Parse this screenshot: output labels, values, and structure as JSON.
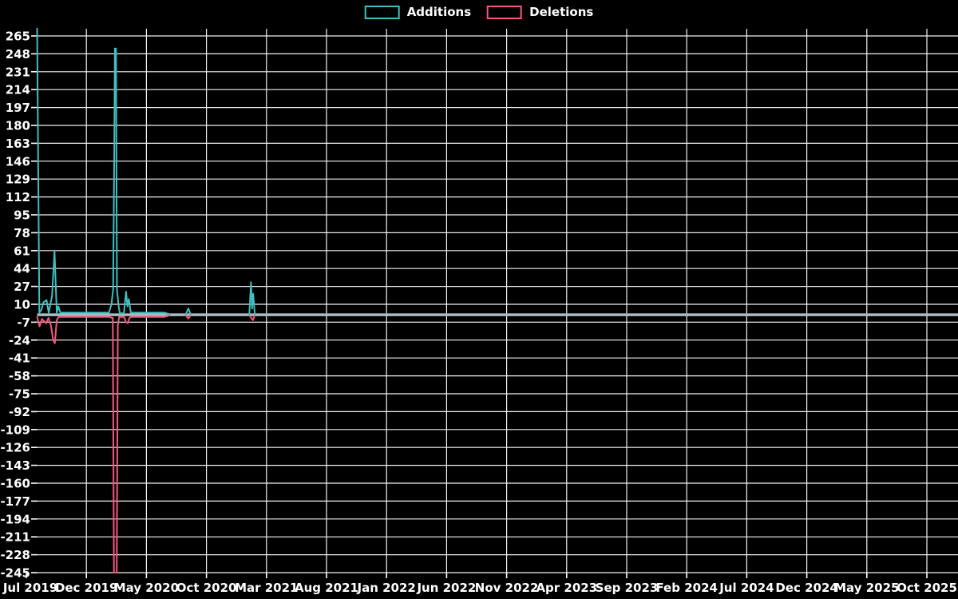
{
  "legend": {
    "position": "top-center",
    "items": [
      {
        "label": "Additions",
        "color": "#3fbfbf"
      },
      {
        "label": "Deletions",
        "color": "#f4587e"
      }
    ]
  },
  "chart_data": {
    "type": "line",
    "title": "",
    "xlabel": "",
    "ylabel": "",
    "background": "#000000",
    "grid": {
      "show": true,
      "color": "#f2f2f2"
    },
    "zero_line": {
      "value": 0,
      "color": "#a9bcc4"
    },
    "x_axis": {
      "labels": [
        "Jul 2019",
        "Dec 2019",
        "May 2020",
        "Oct 2020",
        "Mar 2021",
        "Aug 2021",
        "Jan 2022",
        "Jun 2022",
        "Nov 2022",
        "Apr 2023",
        "Sep 2023",
        "Feb 2024",
        "Jul 2024",
        "Dec 2024",
        "May 2025",
        "Oct 2025"
      ],
      "label_interval_months": 5,
      "data_resolution": "weekly",
      "weeks_total": 333
    },
    "y_axis": {
      "min": -245,
      "max": 265,
      "tick_step": 17,
      "ticks": [
        265,
        248,
        231,
        214,
        197,
        180,
        163,
        146,
        129,
        112,
        95,
        78,
        61,
        44,
        27,
        10,
        -7,
        -24,
        -41,
        -58,
        -75,
        -92,
        -109,
        -126,
        -143,
        -160,
        -177,
        -194,
        -211,
        -228,
        -245
      ]
    },
    "series": [
      {
        "name": "Additions",
        "color": "#3fbfbf",
        "segments": [
          [
            [
              0,
              272
            ],
            [
              0.8,
              2
            ],
            [
              1.6,
              5
            ],
            [
              2.3,
              12
            ],
            [
              3.4,
              14
            ],
            [
              4.2,
              2
            ],
            [
              5.4,
              18
            ],
            [
              6.3,
              61
            ],
            [
              7.1,
              2
            ],
            [
              7.7,
              8
            ],
            [
              8.4,
              2
            ],
            [
              14,
              2
            ],
            [
              20,
              2
            ],
            [
              26,
              2
            ],
            [
              26.9,
              10
            ],
            [
              27.5,
              24
            ],
            [
              27.9,
              152
            ],
            [
              28.15,
              253
            ],
            [
              28.55,
              253
            ],
            [
              28.9,
              24
            ],
            [
              29.4,
              10
            ],
            [
              29.9,
              1.5
            ],
            [
              31.4,
              1.5
            ],
            [
              32.2,
              22
            ],
            [
              32.7,
              8
            ],
            [
              33.2,
              15
            ],
            [
              33.9,
              2
            ],
            [
              36,
              2
            ],
            [
              42,
              2
            ],
            [
              46,
              2
            ],
            [
              48,
              0.5
            ]
          ],
          [
            [
              53.8,
              0.5
            ],
            [
              54.7,
              6
            ],
            [
              55.6,
              0.5
            ]
          ],
          [
            [
              76.8,
              0.5
            ],
            [
              77.4,
              31
            ],
            [
              77.8,
              6
            ],
            [
              78.2,
              20
            ],
            [
              78.8,
              0.5
            ]
          ]
        ]
      },
      {
        "name": "Deletions",
        "color": "#f4587e",
        "segments": [
          [
            [
              0,
              -2
            ],
            [
              0.9,
              -11
            ],
            [
              1.7,
              -4
            ],
            [
              2.5,
              -6
            ],
            [
              3.3,
              -8
            ],
            [
              4.1,
              -3
            ],
            [
              5,
              -10
            ],
            [
              5.8,
              -24
            ],
            [
              6.4,
              -27
            ],
            [
              7.1,
              -5
            ],
            [
              7.8,
              -2
            ],
            [
              8.5,
              -2
            ],
            [
              14,
              -2
            ],
            [
              20,
              -2
            ],
            [
              26,
              -2
            ],
            [
              27.4,
              -3
            ],
            [
              27.8,
              -245
            ],
            [
              28.8,
              -245
            ],
            [
              29.2,
              -10
            ],
            [
              29.7,
              -2
            ],
            [
              31.4,
              -2
            ],
            [
              32.2,
              -7
            ],
            [
              32.8,
              -8
            ],
            [
              33.4,
              -3
            ],
            [
              34,
              -2
            ],
            [
              36,
              -2
            ],
            [
              42,
              -2
            ],
            [
              46,
              -2
            ],
            [
              48,
              -0.5
            ]
          ],
          [
            [
              53.8,
              -0.5
            ],
            [
              54.7,
              -3.5
            ],
            [
              55.6,
              -0.5
            ]
          ],
          [
            [
              76.9,
              -0.5
            ],
            [
              77.5,
              -3
            ],
            [
              78.1,
              -5
            ],
            [
              78.7,
              -0.5
            ]
          ]
        ]
      }
    ]
  }
}
